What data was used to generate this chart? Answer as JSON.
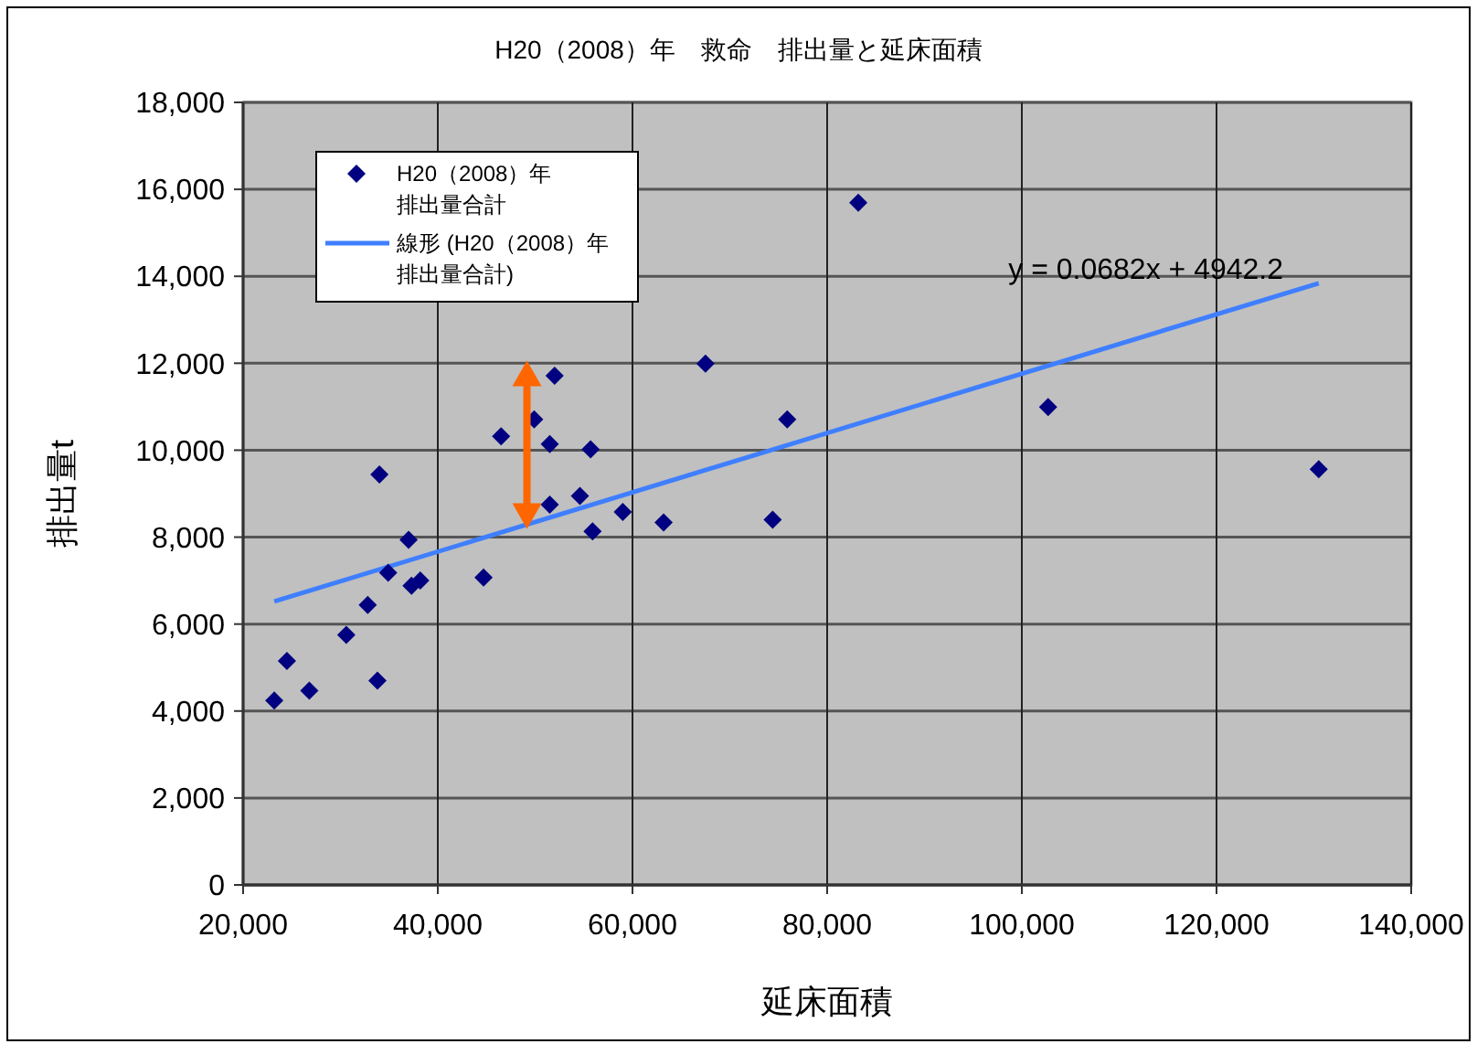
{
  "chart_data": {
    "type": "scatter",
    "title": "H20（2008）年　救命　排出量と延床面積",
    "xlabel": "延床面積",
    "ylabel": "排出量t",
    "annotations": [
      "y = 0.0682x + 4942.2"
    ],
    "xlim": [
      20000,
      140000
    ],
    "xticks": [
      {
        "value": 20000,
        "label": "20,000"
      },
      {
        "value": 40000,
        "label": "40,000"
      },
      {
        "value": 60000,
        "label": "60,000"
      },
      {
        "value": 80000,
        "label": "80,000"
      },
      {
        "value": 100000,
        "label": "100,000"
      },
      {
        "value": 120000,
        "label": "120,000"
      },
      {
        "value": 140000,
        "label": "140,000"
      }
    ],
    "ylim": [
      0,
      18000
    ],
    "yticks": [
      0,
      {
        "value": 2000,
        "label": "2,000"
      },
      {
        "value": 4000,
        "label": "4,000"
      },
      {
        "value": 6000,
        "label": "6,000"
      },
      {
        "value": 8000,
        "label": "8,000"
      },
      {
        "value": 10000,
        "label": "10,000"
      },
      {
        "value": 12000,
        "label": "12,000"
      },
      {
        "value": 14000,
        "label": "14,000"
      },
      {
        "value": 16000,
        "label": "16,000"
      },
      {
        "value": 18000,
        "label": "18,000"
      }
    ],
    "grid": true,
    "legend": "top left",
    "series": [
      {
        "name": "H20（2008）年排出量合計",
        "color": "#000080",
        "marker": "diamond",
        "x": [
          23200,
          24500,
          26800,
          30600,
          32800,
          33800,
          34000,
          34900,
          37000,
          37300,
          38200,
          44700,
          46500,
          49900,
          52000,
          51500,
          55700,
          51500,
          54600,
          55900,
          59000,
          63200,
          67500,
          74400,
          75900,
          83200,
          102700,
          130500
        ],
        "values": [
          4240,
          5150,
          4470,
          5750,
          6440,
          4700,
          9440,
          7180,
          7940,
          6880,
          7000,
          7070,
          10320,
          10710,
          11710,
          10140,
          10020,
          8750,
          8950,
          8130,
          8580,
          8340,
          11990,
          8400,
          10710,
          15690,
          10990,
          9560
        ]
      },
      {
        "name": "線形 (H20（2008）年排出量合計)",
        "type": "line",
        "color": "#3f7fff",
        "line_style": "solid",
        "x": [
          23200,
          130500
        ],
        "values": [
          6520,
          13840
        ]
      }
    ]
  }
}
